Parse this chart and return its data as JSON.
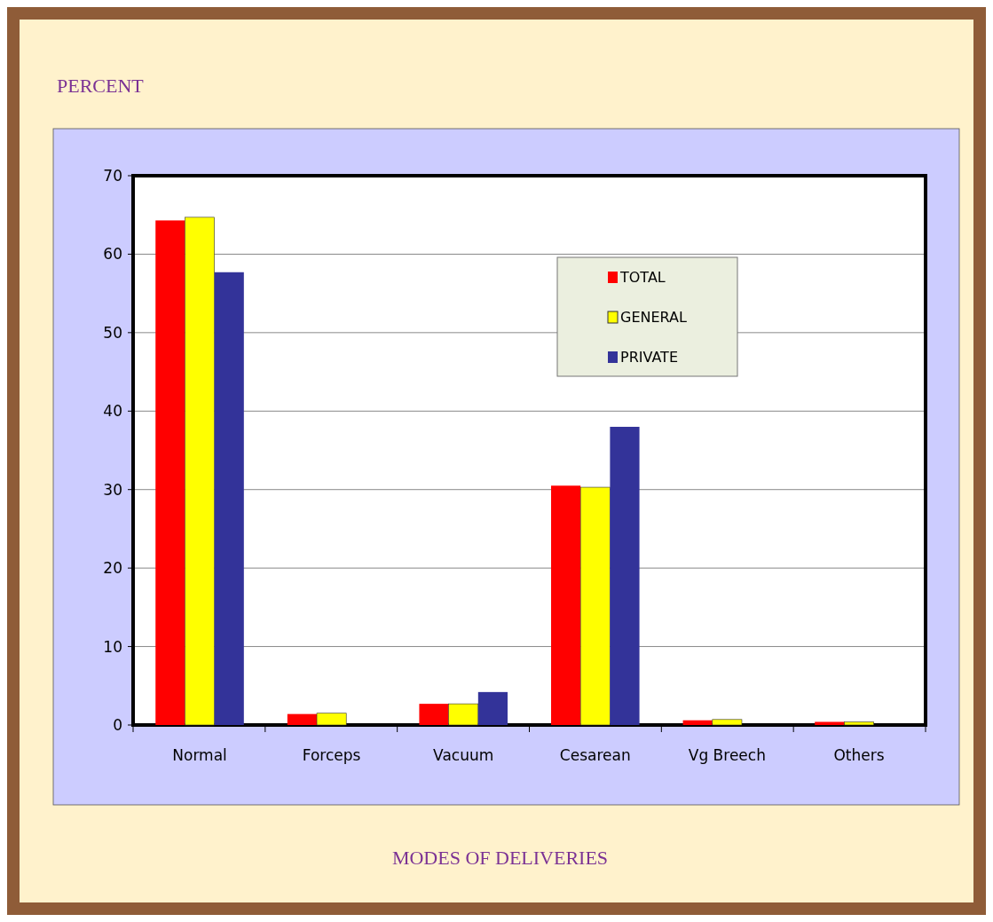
{
  "chart_data": {
    "type": "bar",
    "ylabel": "PERCENT",
    "xlabel": "MODES OF DELIVERIES",
    "categories": [
      "Normal",
      "Forceps",
      "Vacuum",
      "Cesarean",
      "Vg Breech",
      "Others"
    ],
    "series": [
      {
        "name": "TOTAL",
        "color": "#ff0000",
        "values": [
          64.3,
          1.4,
          2.7,
          30.5,
          0.6,
          0.4
        ]
      },
      {
        "name": "GENERAL",
        "color": "#ffff00",
        "values": [
          64.7,
          1.5,
          2.7,
          30.3,
          0.7,
          0.4
        ]
      },
      {
        "name": "PRIVATE",
        "color": "#333399",
        "values": [
          57.7,
          0,
          4.2,
          38.0,
          0,
          0
        ]
      }
    ],
    "ylim": [
      0,
      70
    ],
    "yticks": [
      0,
      10,
      20,
      30,
      40,
      50,
      60,
      70
    ],
    "grid": "y",
    "legend": "top right"
  }
}
